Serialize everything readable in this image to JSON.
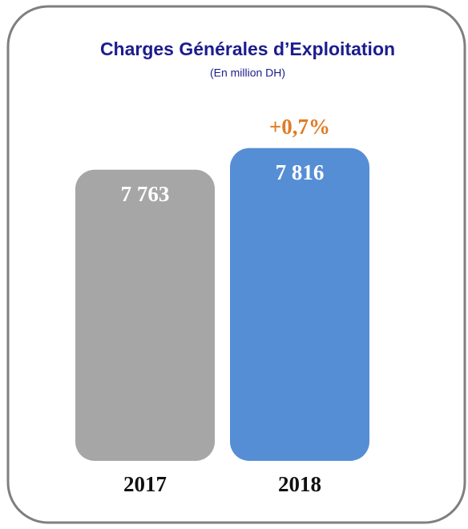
{
  "chart_data": {
    "type": "bar",
    "title": "Charges Générales d’Exploitation",
    "subtitle": "(En million DH)",
    "categories": [
      "2017",
      "2018"
    ],
    "values": [
      7763,
      7816
    ],
    "value_labels": [
      "7 763",
      "7 816"
    ],
    "colors": [
      "#a6a6a6",
      "#558ed5"
    ],
    "ylim": [
      7050,
      7900
    ],
    "annotation": "+0,7%",
    "annotation_color": "#e07b24"
  }
}
